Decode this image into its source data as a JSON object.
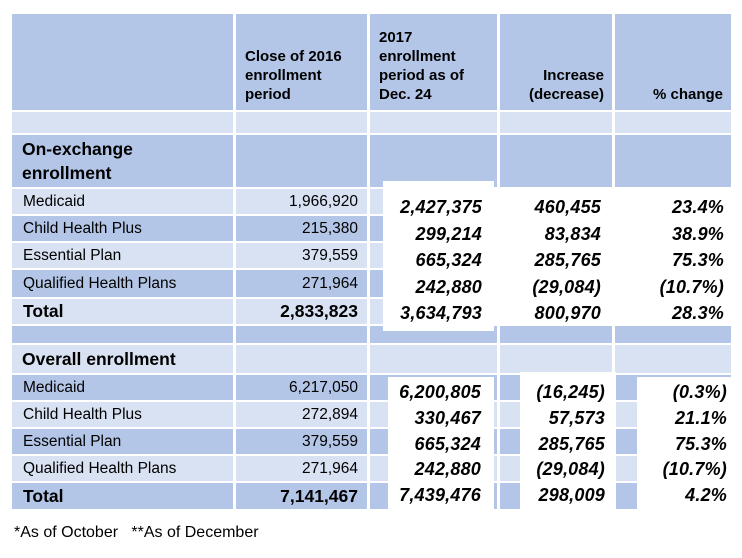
{
  "colors": {
    "band_dark": "#b4c6e7",
    "band_light": "#d9e2f3",
    "overlay_bg": "#ffffff",
    "page_bg": "#ffffff",
    "text": "#000000"
  },
  "chart_data": {
    "type": "table",
    "columns": {
      "labels": "",
      "close_2016": "Close of 2016\nenrollment\nperiod",
      "period_2017": "2017\nenrollment\nperiod as of\nDec. 24",
      "increase": "Increase\n(decrease)",
      "pct_change": "% change"
    },
    "sections": [
      {
        "title": "On-exchange enrollment",
        "rows": [
          {
            "label": "Medicaid",
            "close_2016": "1,966,920",
            "period_2017": "2,427,375",
            "increase": "460,455",
            "pct_change": "23.4%"
          },
          {
            "label": "Child Health Plus",
            "close_2016": "215,380",
            "period_2017": "299,214",
            "increase": "83,834",
            "pct_change": "38.9%"
          },
          {
            "label": "Essential Plan",
            "close_2016": "379,559",
            "period_2017": "665,324",
            "increase": "285,765",
            "pct_change": "75.3%"
          },
          {
            "label": "Qualified Health Plans",
            "close_2016": "271,964",
            "period_2017": "242,880",
            "increase": "(29,084)",
            "pct_change": "(10.7%)"
          }
        ],
        "total": {
          "label": "Total",
          "close_2016": "2,833,823",
          "period_2017": "3,634,793",
          "increase": "800,970",
          "pct_change": "28.3%"
        }
      },
      {
        "title": "Overall enrollment",
        "rows": [
          {
            "label": "Medicaid",
            "close_2016": "6,217,050",
            "period_2017": "6,200,805",
            "increase": "(16,245)",
            "pct_change": "(0.3%)"
          },
          {
            "label": "Child Health Plus",
            "close_2016": "272,894",
            "period_2017": "330,467",
            "increase": "57,573",
            "pct_change": "21.1%"
          },
          {
            "label": "Essential Plan",
            "close_2016": "379,559",
            "period_2017": "665,324",
            "increase": "285,765",
            "pct_change": "75.3%"
          },
          {
            "label": "Qualified Health Plans",
            "close_2016": "271,964",
            "period_2017": "242,880",
            "increase": "(29,084)",
            "pct_change": "(10.7%)"
          }
        ],
        "total": {
          "label": "Total",
          "close_2016": "7,141,467",
          "period_2017": "7,439,476",
          "increase": "298,009",
          "pct_change": "4.2%"
        }
      }
    ]
  },
  "footnote": "*As of October   **As of December"
}
